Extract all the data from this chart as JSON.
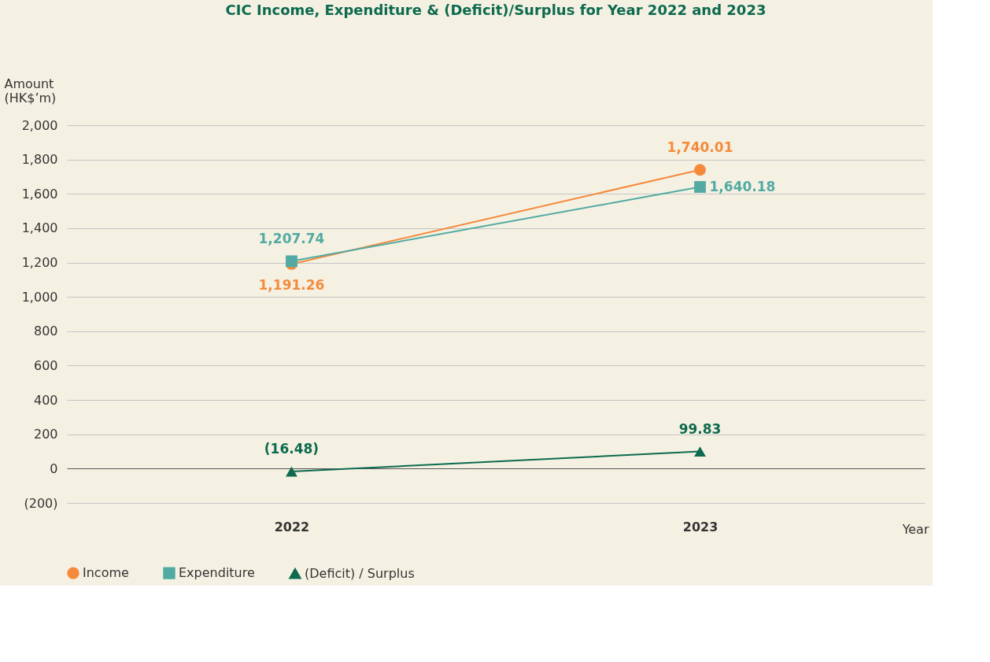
{
  "chart_data": {
    "type": "line",
    "title": "CIC Income, Expenditure & (Deficit)/Surplus for Year 2022 and 2023",
    "xlabel": "Year",
    "ylabel": "Amount (HK$’m)",
    "categories": [
      "2022",
      "2023"
    ],
    "series": [
      {
        "name": "Income",
        "color": "#f58a3c",
        "marker": "circle",
        "values": [
          1191.26,
          1740.01
        ],
        "value_labels": [
          "1,191.26",
          "1,740.01"
        ]
      },
      {
        "name": "Expenditure",
        "color": "#52aaa2",
        "marker": "square",
        "values": [
          1207.74,
          1640.18
        ],
        "value_labels": [
          "1,207.74",
          "1,640.18"
        ]
      },
      {
        "name": "(Deficit) / Surplus",
        "color": "#0d6a4f",
        "marker": "triangle",
        "values": [
          -16.48,
          99.83
        ],
        "value_labels": [
          "(16.48)",
          "99.83"
        ]
      }
    ],
    "ylim": [
      -200,
      2000
    ],
    "yticks": [
      {
        "value": -200,
        "label": "(200)"
      },
      0,
      200,
      400,
      600,
      800,
      {
        "value": 1000,
        "label": "1,000"
      },
      {
        "value": 1200,
        "label": "1,200"
      },
      {
        "value": 1400,
        "label": "1,400"
      },
      {
        "value": 1600,
        "label": "1,600"
      },
      {
        "value": 1800,
        "label": "1,800"
      },
      {
        "value": 2000,
        "label": "2,000"
      }
    ],
    "grid": "y",
    "legend": "bottom",
    "line_style": "solid"
  }
}
